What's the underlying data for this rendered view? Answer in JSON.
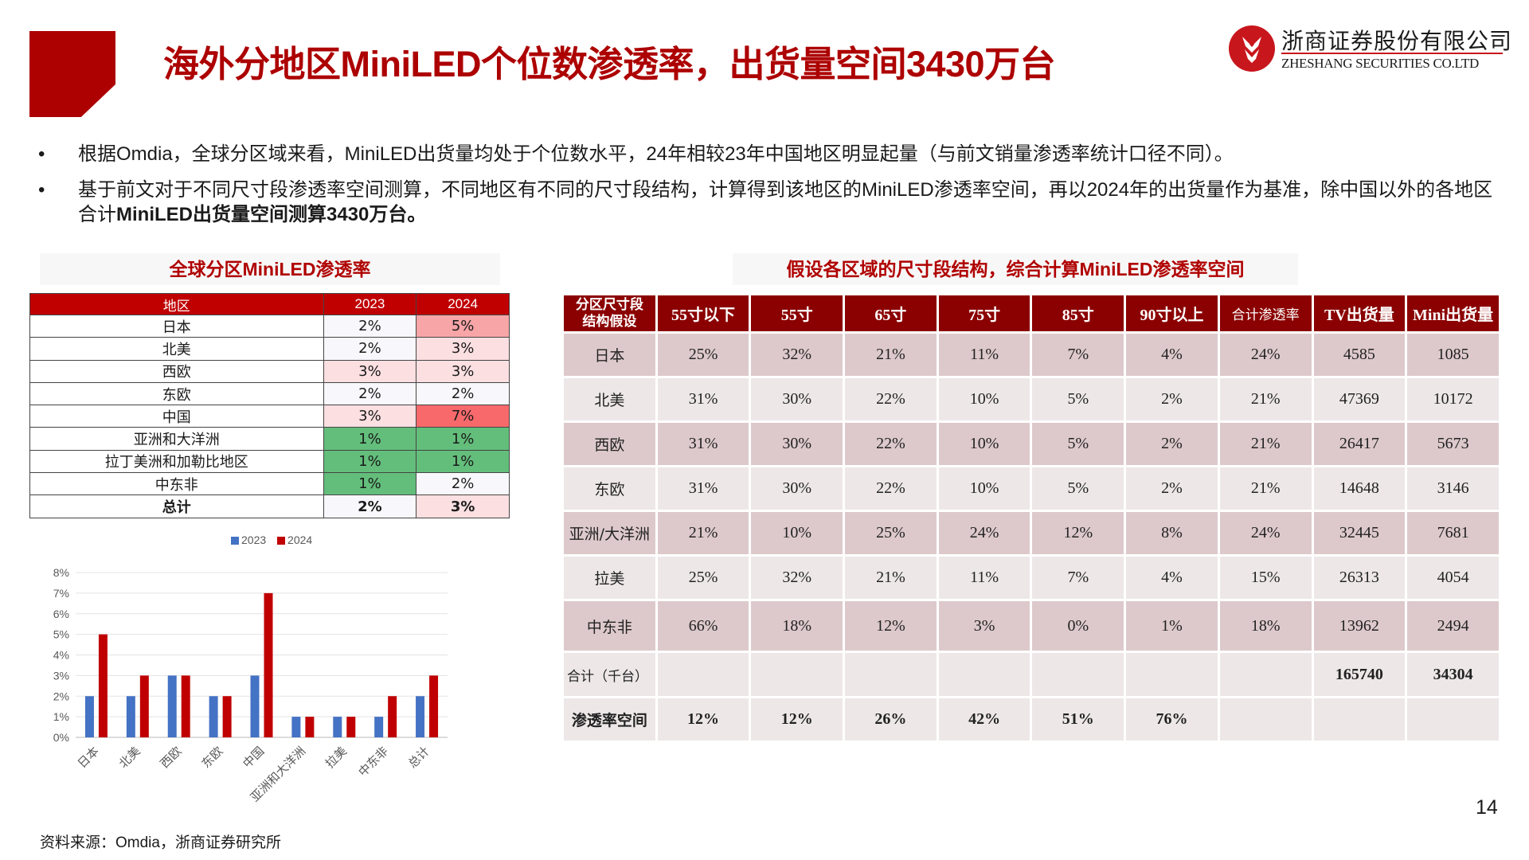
{
  "header": {
    "title": "海外分地区MiniLED个位数渗透率，出货量空间3430万台",
    "logo_cn": "浙商证券股份有限公司",
    "logo_en": "ZHESHANG SECURITIES CO.LTD",
    "accent_color": "#AD0000"
  },
  "bullets": [
    {
      "marker": "•",
      "text": "根据Omdia，全球分区域来看，MiniLED出货量均处于个位数水平，24年相较23年中国地区明显起量（与前文销量渗透率统计口径不同）。"
    },
    {
      "marker": "•",
      "text_plain": "基于前文对于不同尺寸段渗透率空间测算，不同地区有不同的尺寸段结构，计算得到该地区的MiniLED渗透率空间，再以2024年的出货量作为基准，除中国以外的各地区合计",
      "text_bold": "MiniLED出货量空间测算3430万台。"
    }
  ],
  "table1": {
    "title": "全球分区MiniLED渗透率",
    "headers": [
      "地区",
      "2023",
      "2024"
    ],
    "rows": [
      {
        "region": "日本",
        "y2023": "2%",
        "y2024": "5%",
        "c2023": "#F8F8FC",
        "c2024": "#F8A5A7"
      },
      {
        "region": "北美",
        "y2023": "2%",
        "y2024": "3%",
        "c2023": "#F8F8FC",
        "c2024": "#FBDFE1"
      },
      {
        "region": "西欧",
        "y2023": "3%",
        "y2024": "3%",
        "c2023": "#FBDFE1",
        "c2024": "#FBDFE1"
      },
      {
        "region": "东欧",
        "y2023": "2%",
        "y2024": "2%",
        "c2023": "#F8F8FC",
        "c2024": "#F8F8FC"
      },
      {
        "region": "中国",
        "y2023": "3%",
        "y2024": "7%",
        "c2023": "#FBDFE1",
        "c2024": "#F8696B"
      },
      {
        "region": "亚洲和大洋洲",
        "y2023": "1%",
        "y2024": "1%",
        "c2023": "#63BE7B",
        "c2024": "#63BE7B"
      },
      {
        "region": "拉丁美洲和加勒比地区",
        "y2023": "1%",
        "y2024": "1%",
        "c2023": "#63BE7B",
        "c2024": "#63BE7B"
      },
      {
        "region": "中东非",
        "y2023": "1%",
        "y2024": "2%",
        "c2023": "#63BE7B",
        "c2024": "#F8F8FC"
      },
      {
        "region": "总计",
        "y2023": "2%",
        "y2024": "3%",
        "c2023": "#F8F8FC",
        "c2024": "#FBDFE1",
        "bold": true
      }
    ]
  },
  "chart_data": {
    "type": "bar",
    "title": "",
    "categories": [
      "日本",
      "北美",
      "西欧",
      "东欧",
      "中国",
      "亚洲和大洋洲",
      "拉美",
      "中东非",
      "总计"
    ],
    "series": [
      {
        "name": "2023",
        "color": "#4472C4",
        "values": [
          2,
          2,
          3,
          2,
          3,
          1,
          1,
          1,
          2
        ]
      },
      {
        "name": "2024",
        "color": "#C00000",
        "values": [
          5,
          3,
          3,
          2,
          7,
          1,
          1,
          2,
          3
        ]
      }
    ],
    "yticks": [
      "0%",
      "1%",
      "2%",
      "3%",
      "4%",
      "5%",
      "6%",
      "7%",
      "8%"
    ],
    "ylim": [
      0,
      8
    ],
    "xlabel": "",
    "ylabel": "",
    "grid": true,
    "legend_position": "top"
  },
  "table2": {
    "title": "假设各区域的尺寸段结构，综合计算MiniLED渗透率空间",
    "headers": [
      "分区尺寸段结构假设",
      "55寸以下",
      "55寸",
      "65寸",
      "75寸",
      "85寸",
      "90寸以上",
      "合计渗透率",
      "TV出货量",
      "Mini出货量"
    ],
    "rows": [
      {
        "region": "日本",
        "cells": [
          "25%",
          "32%",
          "21%",
          "11%",
          "7%",
          "4%",
          "24%",
          "4585",
          "1085"
        ]
      },
      {
        "region": "北美",
        "cells": [
          "31%",
          "30%",
          "22%",
          "10%",
          "5%",
          "2%",
          "21%",
          "47369",
          "10172"
        ]
      },
      {
        "region": "西欧",
        "cells": [
          "31%",
          "30%",
          "22%",
          "10%",
          "5%",
          "2%",
          "21%",
          "26417",
          "5673"
        ]
      },
      {
        "region": "东欧",
        "cells": [
          "31%",
          "30%",
          "22%",
          "10%",
          "5%",
          "2%",
          "21%",
          "14648",
          "3146"
        ]
      },
      {
        "region": "亚洲/大洋洲",
        "cells": [
          "21%",
          "10%",
          "25%",
          "24%",
          "12%",
          "8%",
          "24%",
          "32445",
          "7681"
        ]
      },
      {
        "region": "拉美",
        "cells": [
          "25%",
          "32%",
          "21%",
          "11%",
          "7%",
          "4%",
          "15%",
          "26313",
          "4054"
        ]
      },
      {
        "region": "中东非",
        "cells": [
          "66%",
          "18%",
          "12%",
          "3%",
          "0%",
          "1%",
          "18%",
          "13962",
          "2494"
        ]
      }
    ],
    "sum_row": {
      "label": "合计（千台）",
      "cells": [
        "",
        "",
        "",
        "",
        "",
        "",
        "",
        "165740",
        "34304"
      ]
    },
    "space_row": {
      "label": "渗透率空间",
      "cells": [
        "12%",
        "12%",
        "26%",
        "42%",
        "51%",
        "76%",
        "",
        "",
        ""
      ]
    }
  },
  "footer": {
    "source": "资料来源：Omdia，浙商证券研究所",
    "page_number": "14"
  }
}
